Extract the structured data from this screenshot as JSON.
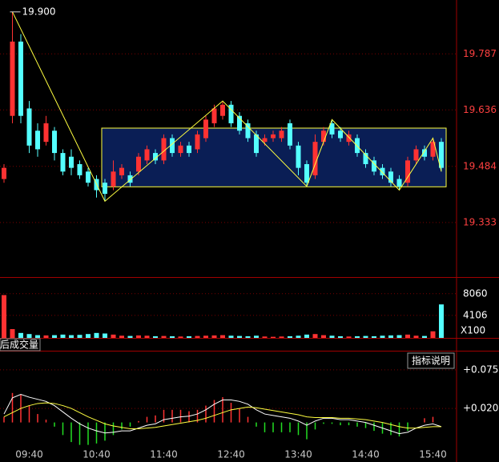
{
  "chart_data": [
    {
      "type": "candlestick",
      "categories": [
        null,
        null,
        null,
        "09:40",
        null,
        null,
        null,
        null,
        null,
        null,
        null,
        "10:40",
        null,
        null,
        null,
        null,
        null,
        null,
        null,
        "11:40",
        null,
        null,
        null,
        null,
        null,
        null,
        null,
        "12:40",
        null,
        null,
        null,
        null,
        null,
        null,
        null,
        "13:40",
        null,
        null,
        null,
        null,
        null,
        null,
        null,
        "14:40",
        null,
        null,
        null,
        null,
        null,
        null,
        null,
        "15:40",
        null
      ],
      "open": [
        19.45,
        19.62,
        19.82,
        19.64,
        19.58,
        19.55,
        19.58,
        19.52,
        19.51,
        19.49,
        19.47,
        19.45,
        19.44,
        19.43,
        19.46,
        19.46,
        19.47,
        19.5,
        19.52,
        19.5,
        19.56,
        19.52,
        19.54,
        19.53,
        19.56,
        19.6,
        19.62,
        19.65,
        19.62,
        19.6,
        19.57,
        19.55,
        19.56,
        19.56,
        19.6,
        19.54,
        19.49,
        19.46,
        19.55,
        19.6,
        19.58,
        19.55,
        19.56,
        19.52,
        19.5,
        19.48,
        19.47,
        19.45,
        19.44,
        19.5,
        19.53,
        19.51,
        19.55
      ],
      "high": [
        19.49,
        19.9,
        19.84,
        19.66,
        19.6,
        19.62,
        19.59,
        19.53,
        19.53,
        19.5,
        19.48,
        19.46,
        19.45,
        19.5,
        19.49,
        19.47,
        19.52,
        19.54,
        19.53,
        19.57,
        19.57,
        19.55,
        19.55,
        19.58,
        19.62,
        19.65,
        19.66,
        19.66,
        19.63,
        19.61,
        19.58,
        19.57,
        19.58,
        19.59,
        19.61,
        19.55,
        19.5,
        19.57,
        19.59,
        19.61,
        19.59,
        19.58,
        19.57,
        19.53,
        19.51,
        19.49,
        19.48,
        19.46,
        19.51,
        19.54,
        19.54,
        19.56,
        19.56
      ],
      "low": [
        19.44,
        19.6,
        19.6,
        19.52,
        19.51,
        19.54,
        19.5,
        19.46,
        19.46,
        19.45,
        19.43,
        19.4,
        19.39,
        19.42,
        19.45,
        19.43,
        19.46,
        19.49,
        19.49,
        19.49,
        19.51,
        19.51,
        19.51,
        19.52,
        19.55,
        19.59,
        19.61,
        19.59,
        19.57,
        19.55,
        19.51,
        19.54,
        19.55,
        19.55,
        19.53,
        19.46,
        19.43,
        19.45,
        19.54,
        19.56,
        19.55,
        19.54,
        19.51,
        19.48,
        19.46,
        19.45,
        19.43,
        19.42,
        19.43,
        19.49,
        19.5,
        19.5,
        19.47
      ],
      "close": [
        19.48,
        19.82,
        19.62,
        19.54,
        19.53,
        19.6,
        19.52,
        19.47,
        19.48,
        19.46,
        19.44,
        19.42,
        19.41,
        19.47,
        19.48,
        19.44,
        19.51,
        19.53,
        19.5,
        19.56,
        19.52,
        19.54,
        19.52,
        19.57,
        19.61,
        19.64,
        19.65,
        19.6,
        19.58,
        19.56,
        19.52,
        19.56,
        19.57,
        19.58,
        19.54,
        19.48,
        19.44,
        19.55,
        19.58,
        19.57,
        19.56,
        19.57,
        19.52,
        19.49,
        19.47,
        19.46,
        19.44,
        19.43,
        19.5,
        19.53,
        19.51,
        19.55,
        19.48
      ],
      "up_color": "#ff3232",
      "down_color": "#54ffff",
      "ylim": [
        19.186,
        19.932
      ],
      "yticks": [
        19.333,
        19.484,
        19.636,
        19.787
      ],
      "grid": true,
      "annotations": [
        {
          "index": 1,
          "value": 19.9,
          "label": "19.900"
        }
      ],
      "zigzag": [
        {
          "index": 1,
          "at": "high"
        },
        {
          "index": 12,
          "at": "low"
        },
        {
          "index": 26,
          "at": "high"
        },
        {
          "index": 36,
          "at": "low"
        },
        {
          "index": 39,
          "at": "high"
        },
        {
          "index": 47,
          "at": "low"
        },
        {
          "index": 51,
          "at": "high"
        },
        {
          "index": 52,
          "at": "low"
        }
      ],
      "box": {
        "from": 12,
        "to": 52,
        "top": 19.587,
        "bottom": 19.429
      }
    },
    {
      "type": "bar",
      "title": "后成交量",
      "unit": "X100",
      "values": [
        7800,
        1600,
        900,
        700,
        500,
        450,
        500,
        600,
        500,
        550,
        700,
        900,
        800,
        600,
        400,
        350,
        450,
        400,
        300,
        350,
        300,
        250,
        300,
        350,
        400,
        450,
        500,
        400,
        350,
        300,
        400,
        250,
        200,
        250,
        300,
        400,
        600,
        700,
        500,
        400,
        300,
        250,
        300,
        350,
        300,
        400,
        450,
        500,
        600,
        400,
        350,
        1200,
        6100
      ],
      "ylim": [
        0,
        10800
      ],
      "yticks": [
        4106,
        8060
      ],
      "grid": true
    },
    {
      "type": "macd",
      "button": "指标说明",
      "histogram": [
        0.008,
        0.042,
        0.04,
        0.024,
        0.012,
        0.004,
        -0.006,
        -0.018,
        -0.028,
        -0.032,
        -0.032,
        -0.03,
        -0.026,
        -0.018,
        -0.01,
        -0.006,
        0.002,
        0.008,
        0.01,
        0.018,
        0.018,
        0.018,
        0.016,
        0.018,
        0.024,
        0.032,
        0.036,
        0.028,
        0.02,
        0.008,
        -0.006,
        -0.014,
        -0.014,
        -0.014,
        -0.014,
        -0.018,
        -0.024,
        -0.01,
        -0.002,
        -0.002,
        -0.004,
        -0.004,
        -0.006,
        -0.008,
        -0.012,
        -0.016,
        -0.018,
        -0.02,
        -0.012,
        0.0,
        0.006,
        0.008,
        0.0
      ],
      "dif": [
        0.012,
        0.035,
        0.04,
        0.036,
        0.033,
        0.03,
        0.024,
        0.015,
        0.006,
        -0.002,
        -0.008,
        -0.012,
        -0.015,
        -0.014,
        -0.012,
        -0.012,
        -0.008,
        -0.004,
        -0.002,
        0.004,
        0.006,
        0.008,
        0.009,
        0.012,
        0.018,
        0.026,
        0.032,
        0.032,
        0.03,
        0.026,
        0.018,
        0.012,
        0.01,
        0.008,
        0.006,
        0.002,
        -0.004,
        0.002,
        0.006,
        0.006,
        0.004,
        0.004,
        0.002,
        0.0,
        -0.004,
        -0.008,
        -0.012,
        -0.016,
        -0.014,
        -0.008,
        -0.004,
        -0.002,
        -0.006
      ],
      "dea": [
        0.008,
        0.014,
        0.02,
        0.024,
        0.027,
        0.028,
        0.027,
        0.024,
        0.02,
        0.014,
        0.008,
        0.003,
        -0.002,
        -0.005,
        -0.007,
        -0.009,
        -0.009,
        -0.008,
        -0.007,
        -0.005,
        -0.003,
        -0.001,
        0.001,
        0.003,
        0.006,
        0.01,
        0.014,
        0.018,
        0.02,
        0.022,
        0.021,
        0.019,
        0.017,
        0.015,
        0.013,
        0.011,
        0.008,
        0.007,
        0.007,
        0.007,
        0.006,
        0.006,
        0.005,
        0.004,
        0.002,
        0.0,
        -0.003,
        -0.006,
        -0.008,
        -0.008,
        -0.007,
        -0.006,
        -0.006
      ],
      "up_color": "#ff3232",
      "down_color": "#22dd22",
      "dif_color": "#ffffff",
      "dea_color": "#ffff40",
      "ylim": [
        -0.037,
        0.1
      ],
      "yticks": [
        {
          "value": 0.075,
          "label": "+0.075"
        },
        {
          "value": 0.02,
          "label": "+0.020"
        }
      ],
      "grid": true
    }
  ]
}
